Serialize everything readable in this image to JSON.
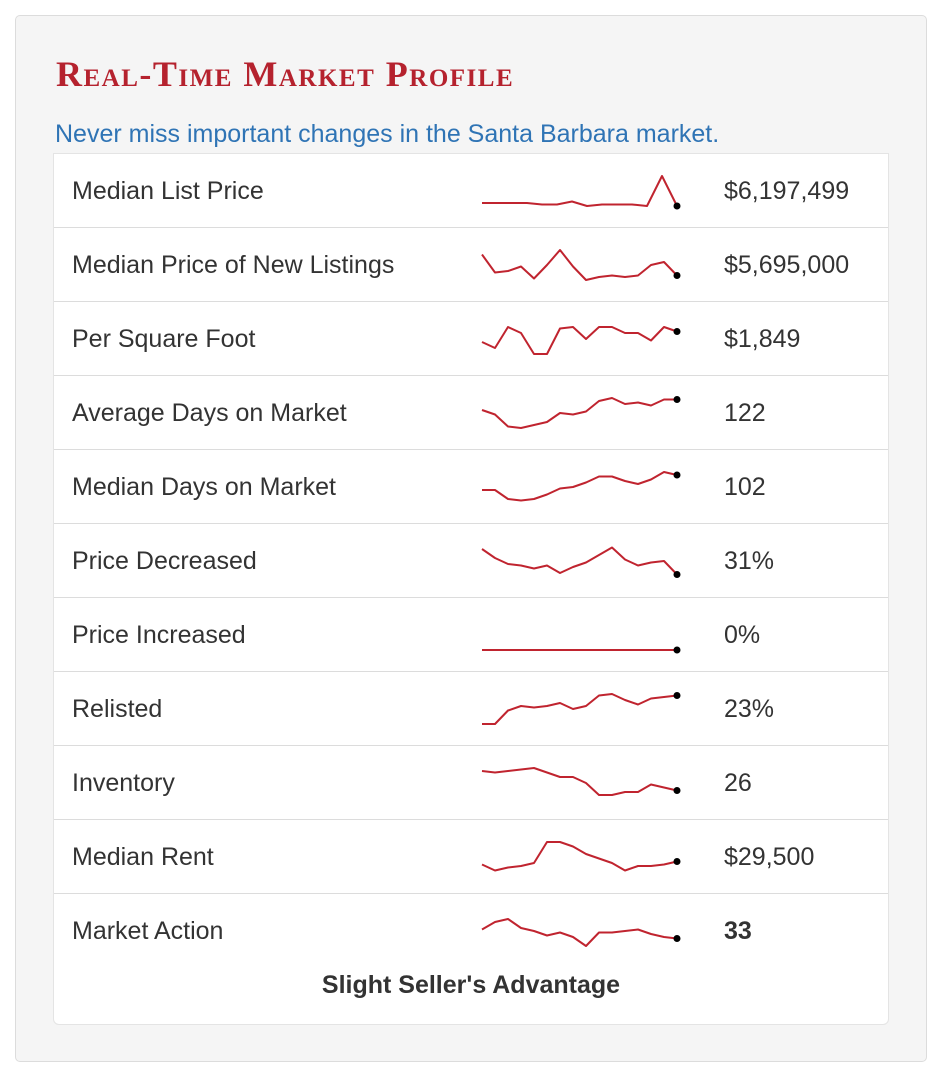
{
  "header": {
    "title": "Real-Time Market Profile",
    "subtitle": "Never miss important changes in the Santa Barbara market."
  },
  "colors": {
    "title": "#b5222e",
    "subtitle": "#2f74b5",
    "sparkline": "#c0242f",
    "endpoint": "#000000"
  },
  "rows": [
    {
      "label": "Median List Price",
      "value": "$6,197,499",
      "bold": false,
      "sparkline": [
        0.1,
        0.1,
        0.1,
        0.1,
        0.05,
        0.05,
        0.15,
        0.0,
        0.05,
        0.05,
        0.05,
        0.0,
        1.0,
        0.0
      ]
    },
    {
      "label": "Median Price of New Listings",
      "value": "$5,695,000",
      "bold": false,
      "sparkline": [
        0.85,
        0.25,
        0.3,
        0.45,
        0.05,
        0.5,
        1.0,
        0.45,
        0.0,
        0.1,
        0.15,
        0.1,
        0.15,
        0.5,
        0.6,
        0.15
      ]
    },
    {
      "label": "Per Square Foot",
      "value": "$1,849",
      "bold": false,
      "sparkline": [
        0.4,
        0.2,
        0.9,
        0.7,
        0.0,
        0.0,
        0.85,
        0.9,
        0.5,
        0.9,
        0.9,
        0.7,
        0.7,
        0.45,
        0.9,
        0.75
      ]
    },
    {
      "label": "Average Days on Market",
      "value": "122",
      "bold": false,
      "sparkline": [
        0.6,
        0.45,
        0.05,
        0.0,
        0.1,
        0.2,
        0.5,
        0.45,
        0.55,
        0.9,
        1.0,
        0.8,
        0.85,
        0.75,
        0.95,
        0.95
      ]
    },
    {
      "label": "Median Days on Market",
      "value": "102",
      "bold": false,
      "sparkline": [
        0.4,
        0.4,
        0.1,
        0.05,
        0.1,
        0.25,
        0.45,
        0.5,
        0.65,
        0.85,
        0.85,
        0.7,
        0.6,
        0.75,
        1.0,
        0.9
      ]
    },
    {
      "label": "Price Decreased",
      "value": "31%",
      "bold": false,
      "sparkline": [
        0.9,
        0.6,
        0.4,
        0.35,
        0.25,
        0.35,
        0.1,
        0.3,
        0.45,
        0.7,
        0.95,
        0.55,
        0.35,
        0.45,
        0.5,
        0.05
      ]
    },
    {
      "label": "Price Increased",
      "value": "0%",
      "bold": false,
      "sparkline": [
        0,
        0,
        0,
        0,
        0,
        0,
        0,
        0,
        0,
        0,
        0,
        0,
        0,
        0,
        0,
        0
      ]
    },
    {
      "label": "Relisted",
      "value": "23%",
      "bold": false,
      "sparkline": [
        0.0,
        0.0,
        0.45,
        0.6,
        0.55,
        0.6,
        0.7,
        0.5,
        0.6,
        0.95,
        1.0,
        0.8,
        0.65,
        0.85,
        0.9,
        0.95
      ]
    },
    {
      "label": "Inventory",
      "value": "26",
      "bold": false,
      "sparkline": [
        0.9,
        0.85,
        0.9,
        0.95,
        1.0,
        0.85,
        0.7,
        0.7,
        0.5,
        0.1,
        0.1,
        0.2,
        0.2,
        0.45,
        0.35,
        0.25
      ]
    },
    {
      "label": "Median Rent",
      "value": "$29,500",
      "bold": false,
      "sparkline": [
        0.25,
        0.05,
        0.15,
        0.2,
        0.3,
        1.0,
        1.0,
        0.85,
        0.6,
        0.45,
        0.3,
        0.05,
        0.2,
        0.2,
        0.25,
        0.35
      ]
    },
    {
      "label": "Market Action",
      "value": "33",
      "bold": true,
      "sparkline": [
        0.55,
        0.8,
        0.9,
        0.6,
        0.5,
        0.35,
        0.45,
        0.3,
        0.0,
        0.45,
        0.45,
        0.5,
        0.55,
        0.4,
        0.3,
        0.25
      ]
    }
  ],
  "footer": {
    "note": "Slight Seller's Advantage"
  }
}
